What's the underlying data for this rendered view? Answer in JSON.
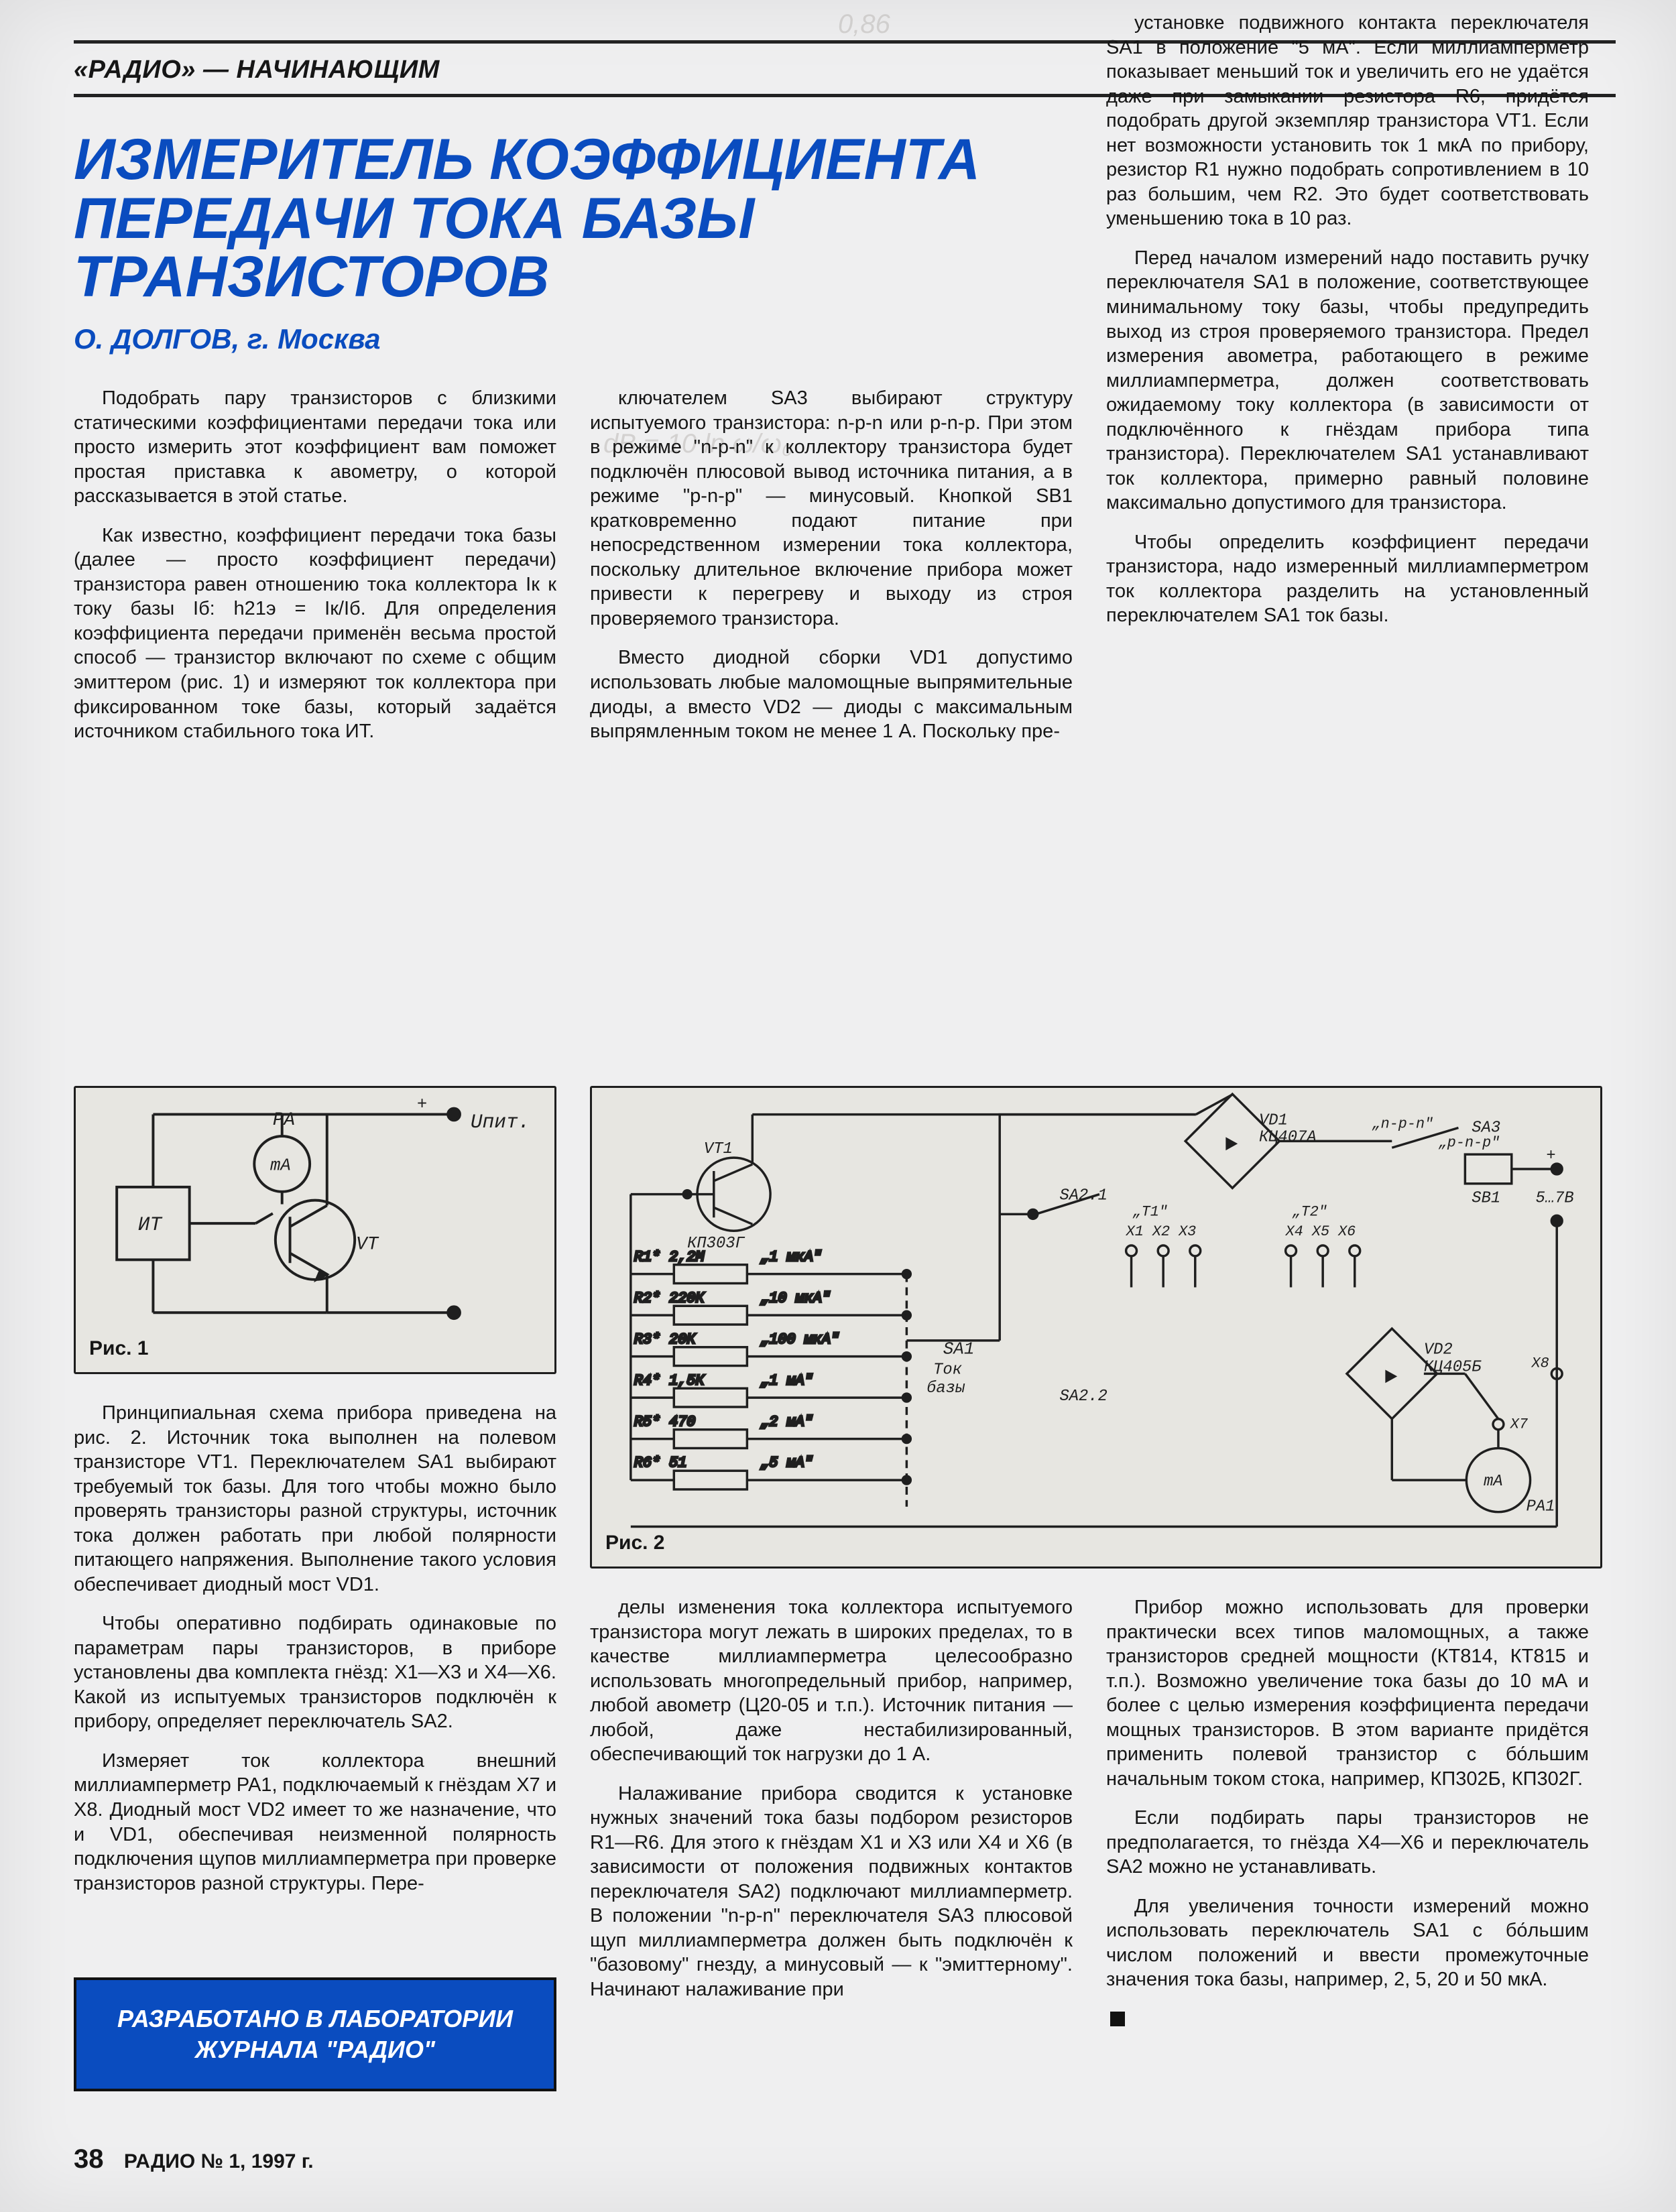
{
  "section_header": "«РАДИО» — НАЧИНАЮЩИМ",
  "title": "ИЗМЕРИТЕЛЬ КОЭФФИЦИЕНТА ПЕРЕДАЧИ ТОКА БАЗЫ ТРАНЗИСТОРОВ",
  "author": "О. ДОЛГОВ, г. Москва",
  "fig1_label": "Рис. 1",
  "fig2_label": "Рис. 2",
  "designed_box": "РАЗРАБОТАНО В ЛАБОРАТОРИИ ЖУРНАЛА \"РАДИО\"",
  "page_number": "38",
  "issue": "РАДИО № 1, 1997 г.",
  "scribble1": "0,86",
  "scribble2": "dB = 10 ln ω/ω₀",
  "col1_paras": [
    "Подобрать пару транзисторов с близкими статическими коэффициентами передачи тока или просто измерить этот коэффициент вам поможет простая приставка к авометру, о которой рассказывается в этой статье.",
    "Как известно, коэффициент передачи тока базы (далее — просто коэффициент передачи) транзистора равен отношению тока коллектора Iк к току базы Iб: h21э = Iк/Iб. Для определения коэффициента передачи применён весьма простой способ — транзистор включают по схеме с общим эмиттером (рис. 1) и измеряют ток коллектора при фиксированном токе базы, который задаётся источником стабильного тока ИТ."
  ],
  "col2_paras": [
    "ключателем SA3 выбирают структуру испытуемого транзистора: n-p-n или p-n-p. При этом в режиме \"n-p-n\" к коллектору транзистора будет подключён плюсовой вывод источника питания, а в режиме \"p-n-p\" — минусовый. Кнопкой SB1 кратковременно подают питание при непосредственном измерении тока коллектора, поскольку длительное включение прибора может привести к перегреву и выходу из строя проверяемого транзистора.",
    "Вместо диодной сборки VD1 допустимо использовать любые маломощные выпрямительные диоды, а вместо VD2 — диоды с максимальным выпрямленным током не менее 1 А. Поскольку пре-"
  ],
  "col3_paras": [
    "установке подвижного контакта переключателя SA1 в положение \"5 мА\". Если миллиамперметр показывает меньший ток и увеличить его не удаётся даже при замыкании резистора R6, придётся подобрать другой экземпляр транзистора VT1. Если нет возможности установить ток 1 мкА по прибору, резистор R1 нужно подобрать сопротивлением в 10 раз большим, чем R2. Это будет соответствовать уменьшению тока в 10 раз.",
    "Перед началом измерений надо поставить ручку переключателя SA1 в положение, соответствующее минимальному току базы, чтобы предупредить выход из строя проверяемого транзистора. Предел измерения авометра, работающего в режиме миллиамперметра, должен соответствовать ожидаемому току коллектора (в зависимости от подключённого к гнёздам прибора типа транзистора). Переключателем SA1 устанавливают ток коллектора, примерно равный половине максимально допустимого для транзистора.",
    "Чтобы определить коэффициент передачи транзистора, надо измеренный миллиамперметром ток коллектора разделить на установленный переключателем SA1 ток базы."
  ],
  "lower_col1_paras": [
    "Принципиальная схема прибора приведена на рис. 2. Источник тока выполнен на полевом транзисторе VT1. Переключателем SA1 выбирают требуемый ток базы. Для того чтобы можно было проверять транзисторы разной структуры, источник тока должен работать при любой полярности питающего напряжения. Выполнение такого условия обеспечивает диодный мост VD1.",
    "Чтобы оперативно подбирать одинаковые по параметрам пары транзисторов, в приборе установлены два комплекта гнёзд: X1—X3 и X4—X6. Какой из испытуемых транзисторов подключён к прибору, определяет переключатель SA2.",
    "Измеряет ток коллектора внешний миллиамперметр PA1, подключаемый к гнёздам X7 и X8. Диодный мост VD2 имеет то же назначение, что и VD1, обеспечивая неизменной полярность подключения щупов миллиамперметра при проверке транзисторов разной структуры. Пере-"
  ],
  "lower_col2_paras": [
    "делы изменения тока коллектора испытуемого транзистора могут лежать в широких пределах, то в качестве миллиамперметра целесообразно использовать многопредельный прибор, например, любой авометр (Ц20-05 и т.п.). Источник питания — любой, даже нестабилизированный, обеспечивающий ток нагрузки до 1 А.",
    "Налаживание прибора сводится к установке нужных значений тока базы подбором резисторов R1—R6. Для этого к гнёздам X1 и X3 или X4 и X6 (в зависимости от положения подвижных контактов переключателя SA2) подключают миллиамперметр. В положении \"n-p-n\" переключателя SA3 плюсовой щуп миллиамперметра должен быть подключён к \"базовому\" гнезду, а минусовый — к \"эмиттерному\". Начинают налаживание при"
  ],
  "lower_col3_paras": [
    "Прибор можно использовать для проверки практически всех типов маломощных, а также транзисторов средней мощности (КТ814, КТ815 и т.п.). Возможно увеличение тока базы до 10 мА и более с целью измерения коэффициента передачи мощных транзисторов. В этом варианте придётся применить полевой транзистор с бо́льшим начальным током стока, например, КП302Б, КП302Г.",
    "Если подбирать пары транзисторов не предполагается, то гнёзда X4—X6 и переключатель SA2 можно не устанавливать.",
    "Для увеличения точности измерений можно использовать переключатель SA1 с бо́льшим числом положений и ввести промежуточные значения тока базы, например, 2, 5, 20 и 50 мкА."
  ],
  "fig1": {
    "type": "circuit",
    "box_bg": "#e7e6e1",
    "stroke": "#1f1f1f",
    "labels": {
      "IT": "ИТ",
      "PA": "PA",
      "mA": "mA",
      "Upit": "Uпит.",
      "VT": "VT"
    }
  },
  "fig2": {
    "type": "circuit",
    "box_bg": "#e7e6e1",
    "stroke": "#1f1f1f",
    "labels": {
      "VT1": "VT1 КП303Г",
      "VD1": "VD1 КЦ407А",
      "VD2": "VD2 КЦ405Б",
      "SA1": "SA1",
      "SA1cap": "Ток базы",
      "SA21": "SA2.1",
      "SA22": "SA2.2",
      "SA3": "SA3",
      "SB1": "SB1",
      "PA1": "PA1",
      "npp": "„n-p-n\"",
      "pnp": "„p-n-p\"",
      "Vin": "5…7В",
      "mA": "mA",
      "T1": "„T1\"",
      "T2": "„T2\"",
      "X1": "X1",
      "X2": "X2",
      "X3": "X3",
      "X4": "X4",
      "X5": "X5",
      "X6": "X6",
      "X7": "X7",
      "X8": "X8"
    },
    "resistors": [
      {
        "ref": "R1*",
        "val": "2,2М",
        "cur": "„1 мкА\""
      },
      {
        "ref": "R2*",
        "val": "220К",
        "cur": "„10 мкА\""
      },
      {
        "ref": "R3*",
        "val": "20К",
        "cur": "„100 мкА\""
      },
      {
        "ref": "R4*",
        "val": "1,5К",
        "cur": "„1 мА\""
      },
      {
        "ref": "R5*",
        "val": "470",
        "cur": "„2 мА\""
      },
      {
        "ref": "R6*",
        "val": "51",
        "cur": "„5 мА\""
      }
    ]
  },
  "colors": {
    "page_bg": "#efeff0",
    "accent": "#0a4cbf",
    "rule": "#222222",
    "diagram_bg": "#e7e6e1",
    "diagram_stroke": "#1f1f1f"
  },
  "typography": {
    "body_pt": 29,
    "title_pt": 86,
    "author_pt": 42,
    "section_pt": 38,
    "fig_label_pt": 30
  }
}
